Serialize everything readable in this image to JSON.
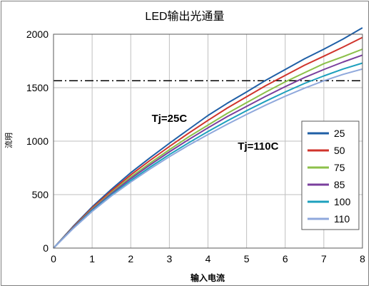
{
  "chart_data": {
    "type": "line",
    "title": "LED输出光通量",
    "xlabel": "输入电流",
    "ylabel": "流明",
    "xlim": [
      0,
      8
    ],
    "ylim": [
      0,
      2000
    ],
    "x_ticks": [
      "0",
      "1",
      "2",
      "3",
      "4",
      "5",
      "6",
      "7",
      "8"
    ],
    "y_ticks": [
      "0",
      "500",
      "1000",
      "1500",
      "2000"
    ],
    "grid": true,
    "legend_position": "right",
    "reference_line": {
      "y": 1565,
      "style": "dash-dot"
    },
    "annotations": [
      {
        "text": "Tj=25C",
        "x": 3.0,
        "y": 1180
      },
      {
        "text": "Tj=110C",
        "x": 5.3,
        "y": 920
      }
    ],
    "x": [
      0,
      0.5,
      1,
      1.5,
      2,
      2.5,
      3,
      3.5,
      4,
      4.5,
      5,
      5.5,
      6,
      6.5,
      7,
      7.5,
      8
    ],
    "series": [
      {
        "name": "25",
        "color": "#1f5fa6",
        "values": [
          0,
          200,
          385,
          550,
          705,
          845,
          980,
          1110,
          1240,
          1355,
          1460,
          1570,
          1670,
          1770,
          1860,
          1955,
          2060
        ]
      },
      {
        "name": "50",
        "color": "#d0342c",
        "values": [
          0,
          195,
          375,
          535,
          685,
          820,
          950,
          1075,
          1195,
          1310,
          1415,
          1520,
          1615,
          1710,
          1795,
          1880,
          1970
        ]
      },
      {
        "name": "75",
        "color": "#8cc04a",
        "values": [
          0,
          190,
          365,
          520,
          665,
          795,
          920,
          1040,
          1150,
          1260,
          1360,
          1460,
          1555,
          1640,
          1725,
          1790,
          1860
        ]
      },
      {
        "name": "85",
        "color": "#7a3f9d",
        "values": [
          0,
          187,
          358,
          510,
          650,
          778,
          900,
          1015,
          1125,
          1230,
          1325,
          1420,
          1510,
          1595,
          1670,
          1740,
          1805
        ]
      },
      {
        "name": "100",
        "color": "#1da0bd",
        "values": [
          0,
          183,
          350,
          498,
          632,
          757,
          875,
          985,
          1090,
          1190,
          1285,
          1375,
          1460,
          1540,
          1610,
          1675,
          1730
        ]
      },
      {
        "name": "110",
        "color": "#8fa8dc",
        "values": [
          0,
          180,
          343,
          488,
          618,
          740,
          855,
          962,
          1062,
          1158,
          1250,
          1338,
          1420,
          1495,
          1565,
          1625,
          1675
        ]
      }
    ]
  }
}
